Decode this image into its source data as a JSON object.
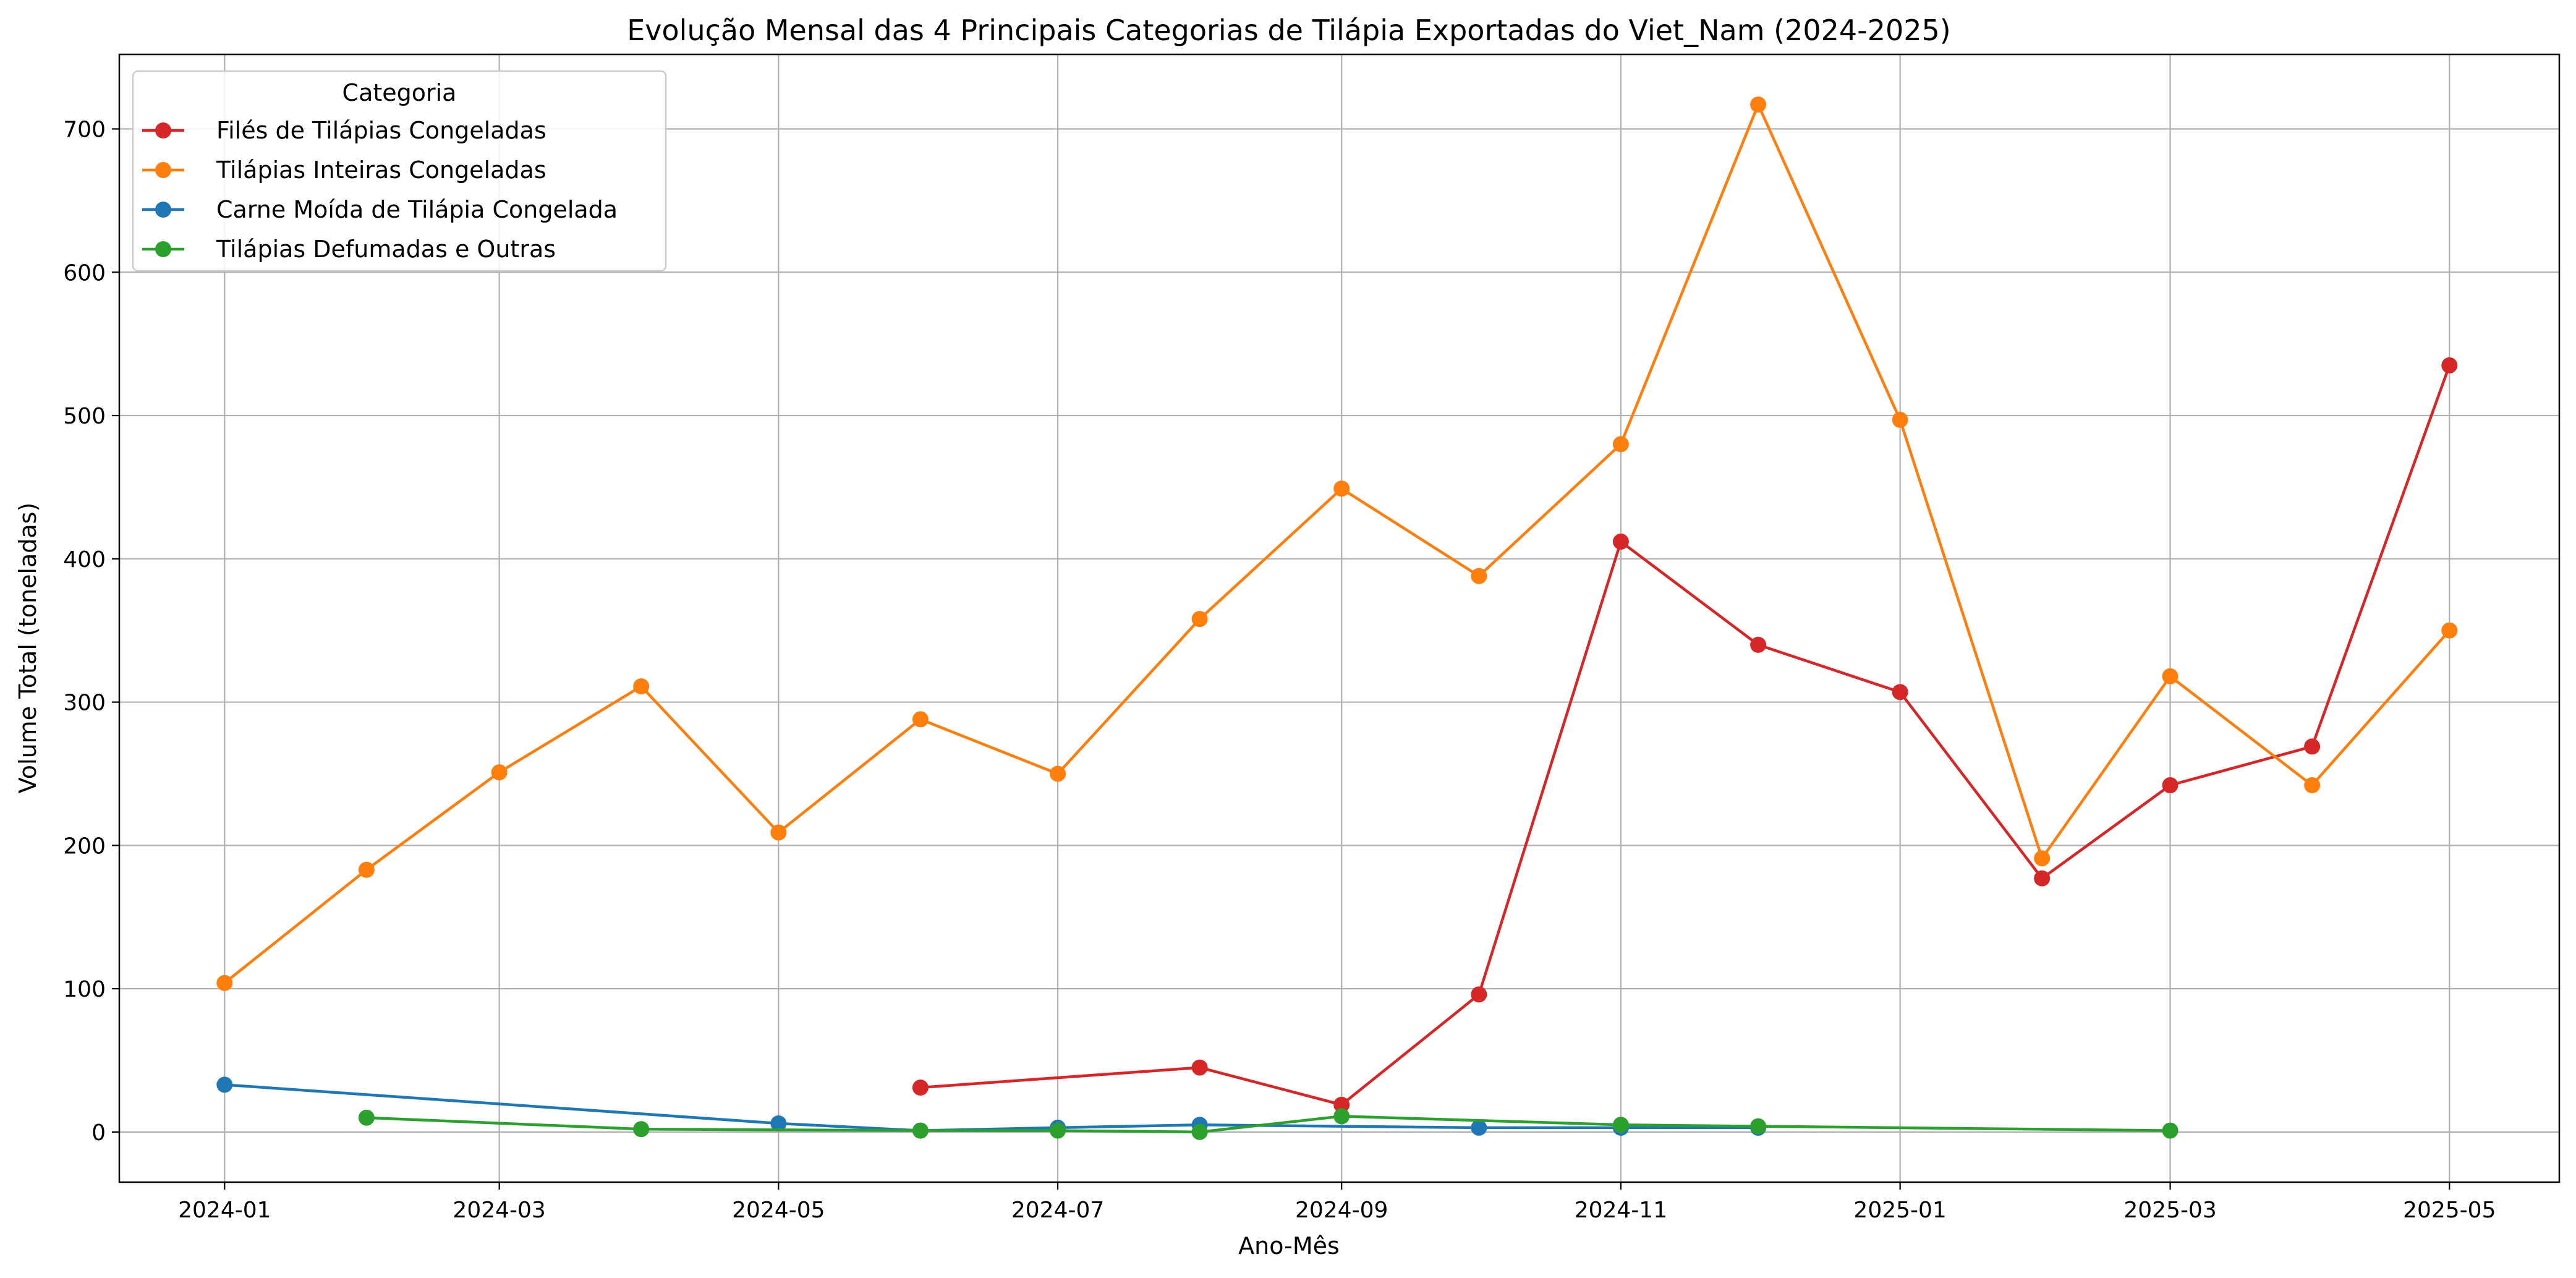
{
  "chart_data": {
    "type": "line",
    "title": "Evolução Mensal das 4 Principais Categorias de Tilápia Exportadas do Viet_Nam (2024-2025)",
    "xlabel": "Ano-Mês",
    "ylabel": "Volume Total (toneladas)",
    "xlim": [
      "2023-12-09",
      "2025-05-25"
    ],
    "ylim": [
      -35,
      752
    ],
    "x_ticks": [
      "2024-01",
      "2024-03",
      "2024-05",
      "2024-07",
      "2024-09",
      "2024-11",
      "2025-01",
      "2025-03",
      "2025-05"
    ],
    "y_ticks": [
      0,
      100,
      200,
      300,
      400,
      500,
      600,
      700
    ],
    "grid": true,
    "legend": {
      "title": "Categoria",
      "position": "top-left"
    },
    "series": [
      {
        "name": "Filés de Tilápias Congeladas",
        "color": "#d62728",
        "points": [
          {
            "x": "2024-06",
            "y": 31
          },
          {
            "x": "2024-08",
            "y": 45
          },
          {
            "x": "2024-09",
            "y": 19
          },
          {
            "x": "2024-10",
            "y": 96
          },
          {
            "x": "2024-11",
            "y": 412
          },
          {
            "x": "2024-12",
            "y": 340
          },
          {
            "x": "2025-01",
            "y": 307
          },
          {
            "x": "2025-02",
            "y": 177
          },
          {
            "x": "2025-03",
            "y": 242
          },
          {
            "x": "2025-04",
            "y": 269
          },
          {
            "x": "2025-05",
            "y": 535
          }
        ]
      },
      {
        "name": "Tilápias Inteiras Congeladas",
        "color": "#ff7f0e",
        "points": [
          {
            "x": "2024-01",
            "y": 104
          },
          {
            "x": "2024-02",
            "y": 183
          },
          {
            "x": "2024-03",
            "y": 251
          },
          {
            "x": "2024-04",
            "y": 311
          },
          {
            "x": "2024-05",
            "y": 209
          },
          {
            "x": "2024-06",
            "y": 288
          },
          {
            "x": "2024-07",
            "y": 250
          },
          {
            "x": "2024-08",
            "y": 358
          },
          {
            "x": "2024-09",
            "y": 449
          },
          {
            "x": "2024-10",
            "y": 388
          },
          {
            "x": "2024-11",
            "y": 480
          },
          {
            "x": "2024-12",
            "y": 717
          },
          {
            "x": "2025-01",
            "y": 497
          },
          {
            "x": "2025-02",
            "y": 191
          },
          {
            "x": "2025-03",
            "y": 318
          },
          {
            "x": "2025-04",
            "y": 242
          },
          {
            "x": "2025-05",
            "y": 350
          }
        ]
      },
      {
        "name": "Carne Moída de Tilápia Congelada",
        "color": "#1f77b4",
        "points": [
          {
            "x": "2024-01",
            "y": 33
          },
          {
            "x": "2024-05",
            "y": 6
          },
          {
            "x": "2024-06",
            "y": 1
          },
          {
            "x": "2024-07",
            "y": 3
          },
          {
            "x": "2024-08",
            "y": 5
          },
          {
            "x": "2024-10",
            "y": 3
          },
          {
            "x": "2024-11",
            "y": 3
          },
          {
            "x": "2024-12",
            "y": 3
          }
        ]
      },
      {
        "name": "Tilápias Defumadas e Outras",
        "color": "#2ca02c",
        "points": [
          {
            "x": "2024-02",
            "y": 10
          },
          {
            "x": "2024-04",
            "y": 2
          },
          {
            "x": "2024-06",
            "y": 1
          },
          {
            "x": "2024-07",
            "y": 1
          },
          {
            "x": "2024-08",
            "y": 0
          },
          {
            "x": "2024-09",
            "y": 11
          },
          {
            "x": "2024-11",
            "y": 5
          },
          {
            "x": "2024-12",
            "y": 4
          },
          {
            "x": "2025-03",
            "y": 1
          }
        ]
      }
    ]
  }
}
